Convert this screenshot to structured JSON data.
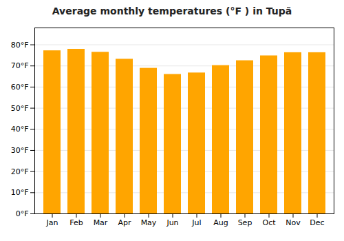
{
  "chart_data": {
    "type": "bar",
    "title": "Average monthly temperatures (°F ) in Tupã",
    "categories": [
      "Jan",
      "Feb",
      "Mar",
      "Apr",
      "May",
      "Jun",
      "Jul",
      "Aug",
      "Sep",
      "Oct",
      "Nov",
      "Dec"
    ],
    "values": [
      77.2,
      77.9,
      76.5,
      73.2,
      68.9,
      66.0,
      66.7,
      70.2,
      72.5,
      74.8,
      76.3,
      76.3
    ],
    "color": "#FFA500",
    "ylim": [
      0,
      88
    ],
    "yticks": [
      {
        "value": 0,
        "label": "0°F"
      },
      {
        "value": 10,
        "label": "10°F"
      },
      {
        "value": 20,
        "label": "20°F"
      },
      {
        "value": 30,
        "label": "30°F"
      },
      {
        "value": 40,
        "label": "40°F"
      },
      {
        "value": 50,
        "label": "50°F"
      },
      {
        "value": 60,
        "label": "60°F"
      },
      {
        "value": 70,
        "label": "70°F"
      },
      {
        "value": 80,
        "label": "80°F"
      }
    ],
    "grid": true
  }
}
